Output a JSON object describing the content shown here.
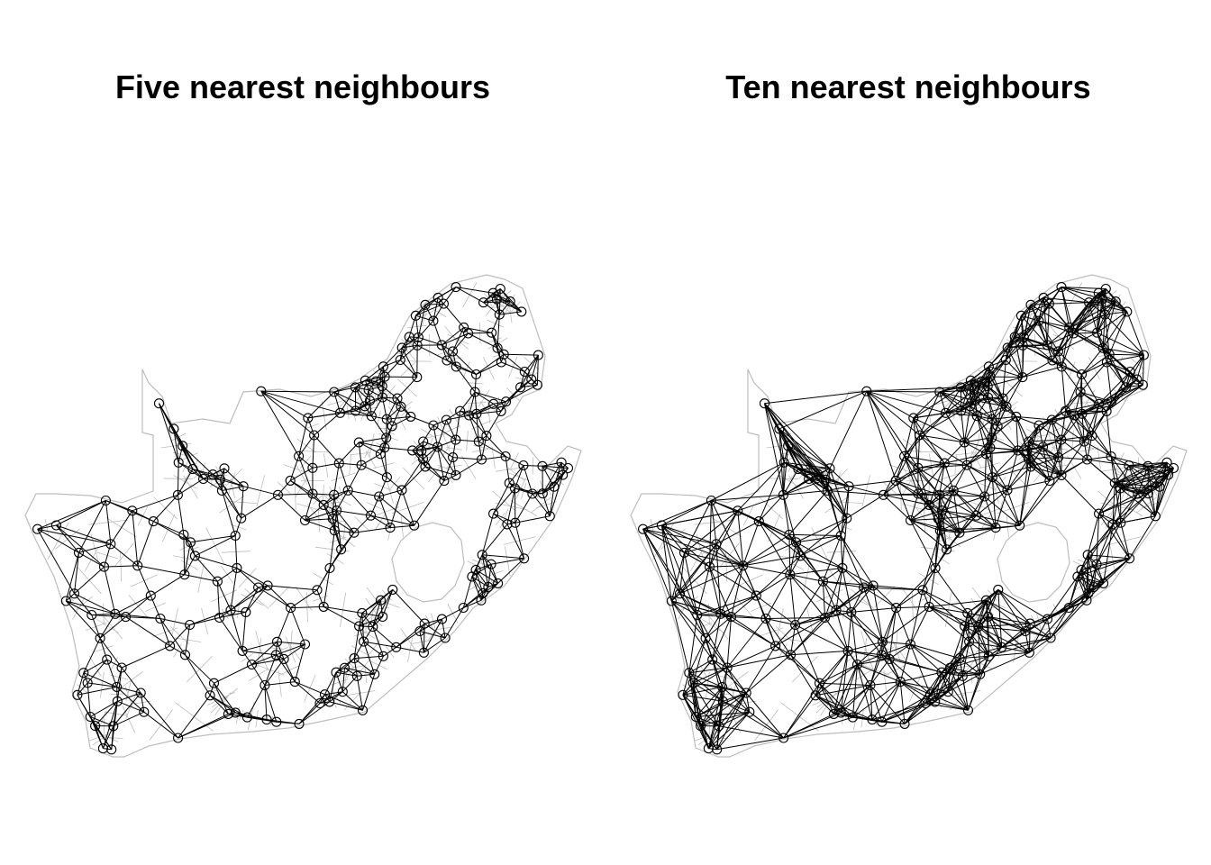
{
  "panels": [
    {
      "title": "Five nearest neighbours",
      "k": 5
    },
    {
      "title": "Ten nearest neighbours",
      "k": 10
    }
  ],
  "colors": {
    "background": "#ffffff",
    "boundary": "#bdbdbd",
    "edges": "#000000",
    "nodes": "#000000"
  },
  "node_count": 234
}
